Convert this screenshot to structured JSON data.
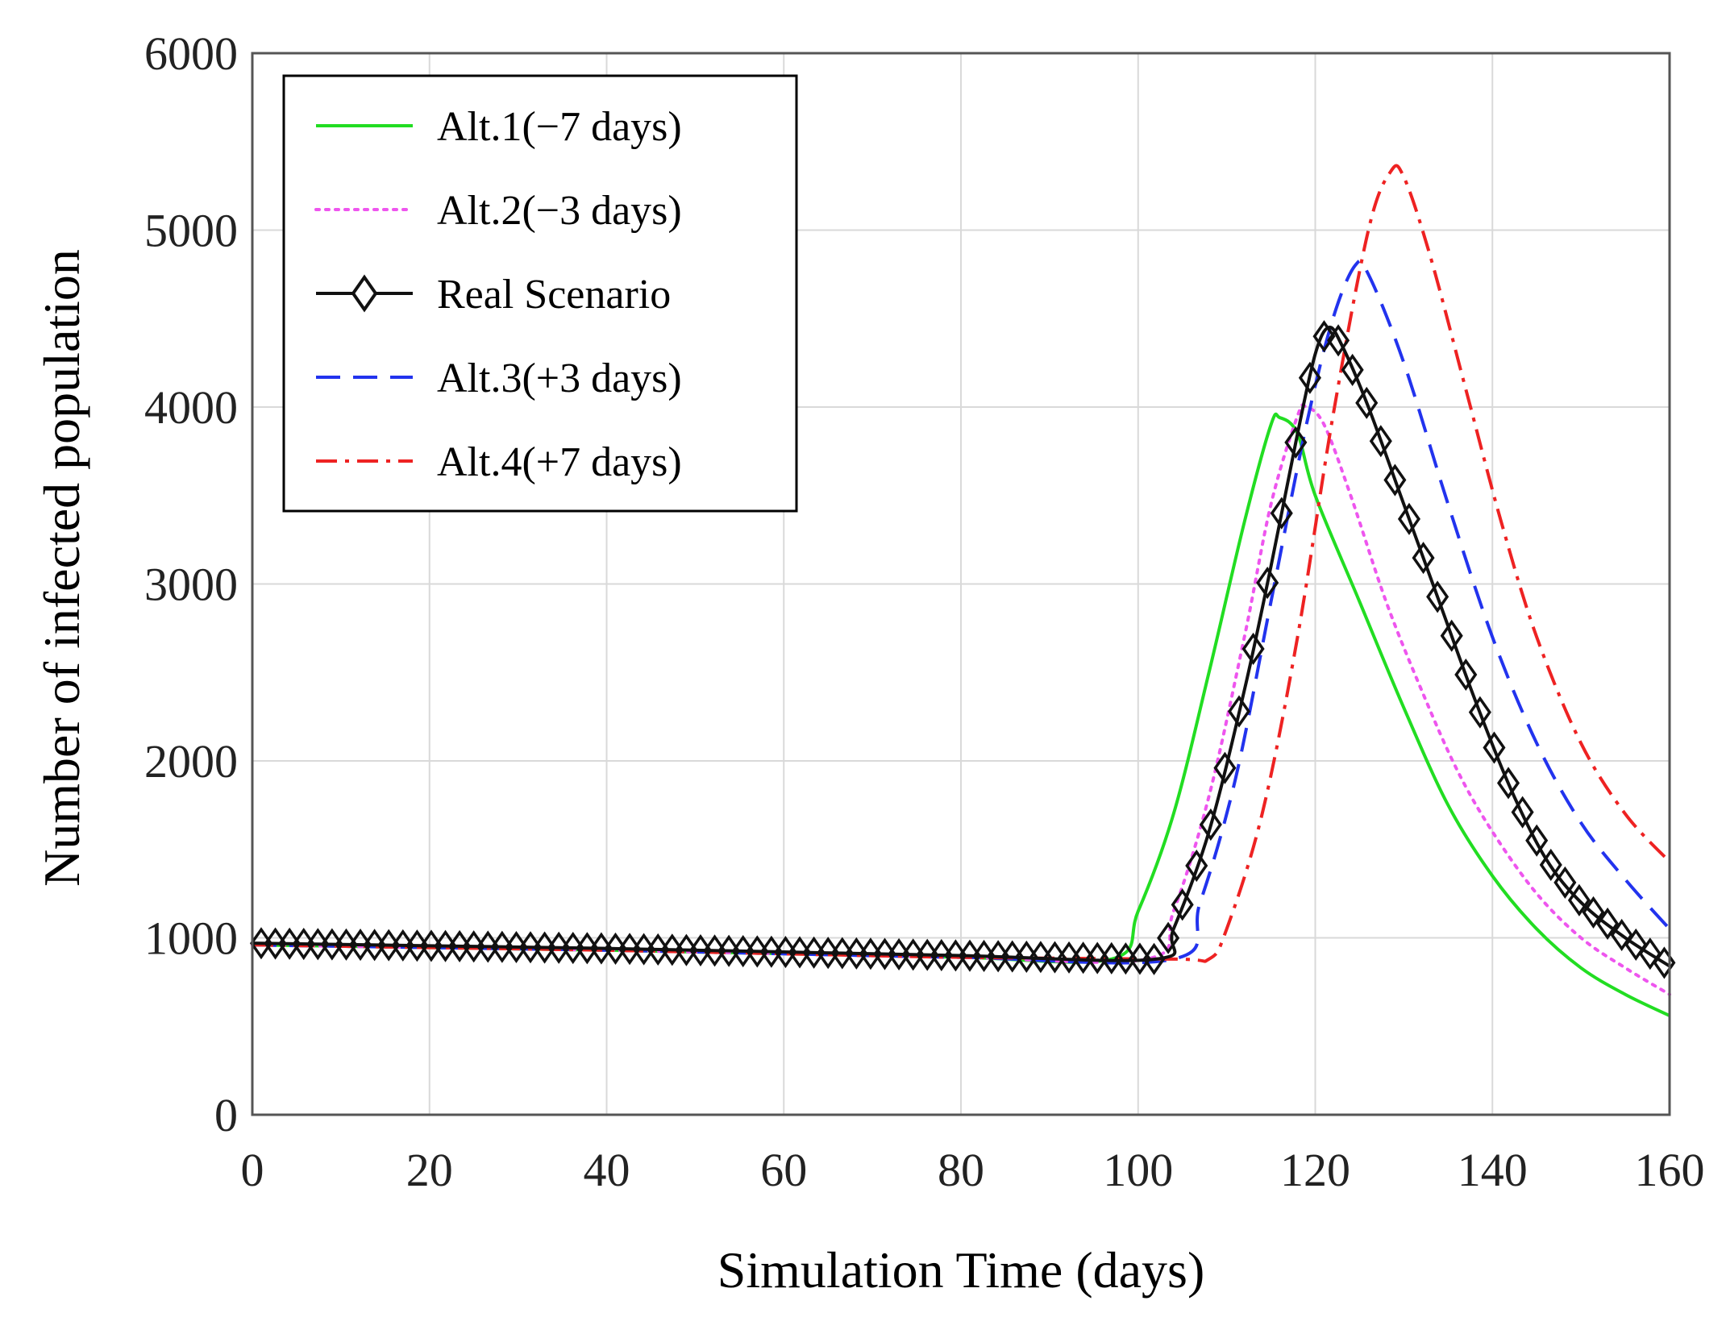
{
  "chart_data": {
    "type": "line",
    "xlabel": "Simulation Time (days)",
    "ylabel": "Number of infected population",
    "xlim": [
      0,
      160
    ],
    "ylim": [
      0,
      6000
    ],
    "xticks": [
      "0",
      "20",
      "40",
      "60",
      "80",
      "100",
      "120",
      "140",
      "160"
    ],
    "yticks": [
      "0",
      "1000",
      "2000",
      "3000",
      "4000",
      "5000",
      "6000"
    ],
    "grid": true,
    "legend_position": "top-left",
    "series": [
      {
        "name": "Alt.1(−7 days)",
        "color": "#22dd22",
        "style": "solid",
        "marker": "none",
        "points": [
          [
            0,
            960
          ],
          [
            20,
            945
          ],
          [
            40,
            930
          ],
          [
            60,
            910
          ],
          [
            80,
            890
          ],
          [
            97,
            880
          ],
          [
            100,
            1150
          ],
          [
            104,
            1700
          ],
          [
            108,
            2500
          ],
          [
            112,
            3350
          ],
          [
            115,
            3900
          ],
          [
            116,
            3940
          ],
          [
            118,
            3850
          ],
          [
            120,
            3500
          ],
          [
            125,
            2900
          ],
          [
            130,
            2300
          ],
          [
            135,
            1750
          ],
          [
            140,
            1350
          ],
          [
            145,
            1050
          ],
          [
            150,
            830
          ],
          [
            155,
            680
          ],
          [
            160,
            560
          ]
        ]
      },
      {
        "name": "Alt.2(−3 days)",
        "color": "#ee55ee",
        "style": "dotted",
        "marker": "none",
        "points": [
          [
            0,
            960
          ],
          [
            20,
            945
          ],
          [
            40,
            930
          ],
          [
            60,
            910
          ],
          [
            80,
            890
          ],
          [
            101,
            880
          ],
          [
            104,
            1150
          ],
          [
            108,
            1800
          ],
          [
            112,
            2700
          ],
          [
            115,
            3450
          ],
          [
            118,
            3950
          ],
          [
            119,
            4000
          ],
          [
            121,
            3900
          ],
          [
            124,
            3500
          ],
          [
            128,
            2900
          ],
          [
            132,
            2400
          ],
          [
            136,
            1950
          ],
          [
            140,
            1600
          ],
          [
            145,
            1250
          ],
          [
            150,
            1000
          ],
          [
            155,
            830
          ],
          [
            160,
            680
          ]
        ]
      },
      {
        "name": "Real Scenario",
        "color": "#111111",
        "style": "solid",
        "marker": "diamond",
        "points": [
          [
            0,
            970
          ],
          [
            20,
            955
          ],
          [
            40,
            940
          ],
          [
            60,
            920
          ],
          [
            80,
            900
          ],
          [
            102,
            880
          ],
          [
            104,
            1050
          ],
          [
            108,
            1600
          ],
          [
            112,
            2400
          ],
          [
            115,
            3100
          ],
          [
            118,
            3850
          ],
          [
            120,
            4300
          ],
          [
            121.5,
            4450
          ],
          [
            123,
            4350
          ],
          [
            126,
            4000
          ],
          [
            130,
            3450
          ],
          [
            134,
            2900
          ],
          [
            138,
            2350
          ],
          [
            142,
            1850
          ],
          [
            146,
            1450
          ],
          [
            150,
            1200
          ],
          [
            155,
            1000
          ],
          [
            160,
            840
          ]
        ]
      },
      {
        "name": "Alt.3(+3 days)",
        "color": "#2233ee",
        "style": "dashed",
        "marker": "none",
        "points": [
          [
            0,
            960
          ],
          [
            20,
            945
          ],
          [
            40,
            930
          ],
          [
            60,
            910
          ],
          [
            80,
            890
          ],
          [
            104,
            880
          ],
          [
            107,
            1200
          ],
          [
            111,
            1900
          ],
          [
            115,
            2900
          ],
          [
            119,
            3900
          ],
          [
            122,
            4500
          ],
          [
            124.5,
            4800
          ],
          [
            126,
            4750
          ],
          [
            130,
            4250
          ],
          [
            135,
            3450
          ],
          [
            140,
            2700
          ],
          [
            145,
            2100
          ],
          [
            150,
            1650
          ],
          [
            155,
            1330
          ],
          [
            160,
            1050
          ]
        ]
      },
      {
        "name": "Alt.4(+7 days)",
        "color": "#ee2222",
        "style": "dashdot",
        "marker": "none",
        "points": [
          [
            0,
            960
          ],
          [
            20,
            945
          ],
          [
            40,
            930
          ],
          [
            60,
            910
          ],
          [
            80,
            890
          ],
          [
            104,
            880
          ],
          [
            108,
            880
          ],
          [
            110,
            1050
          ],
          [
            114,
            1700
          ],
          [
            118,
            2700
          ],
          [
            122,
            3950
          ],
          [
            126,
            5000
          ],
          [
            128.5,
            5330
          ],
          [
            130,
            5300
          ],
          [
            133,
            4850
          ],
          [
            137,
            4100
          ],
          [
            141,
            3350
          ],
          [
            145,
            2700
          ],
          [
            150,
            2100
          ],
          [
            155,
            1700
          ],
          [
            160,
            1430
          ]
        ]
      }
    ]
  }
}
